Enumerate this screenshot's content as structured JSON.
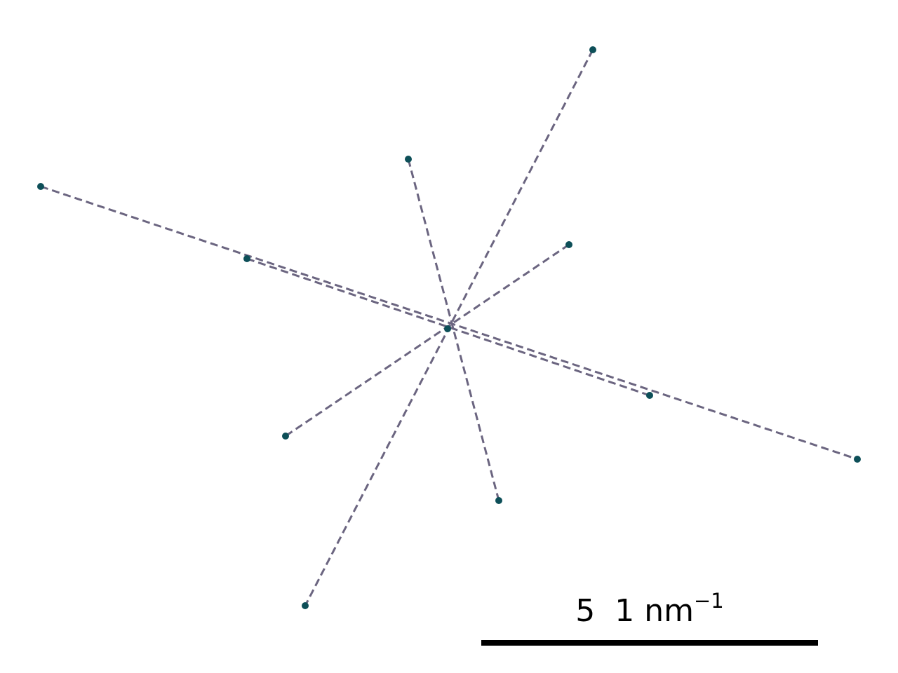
{
  "diagram": {
    "line_color": "#6b6580",
    "spot_color": "#0d4f58",
    "line_style": "dashed"
  },
  "scale_bar": {
    "value": "5",
    "unit_base": "1 nm",
    "unit_exponent": "−1",
    "color": "#000000"
  }
}
